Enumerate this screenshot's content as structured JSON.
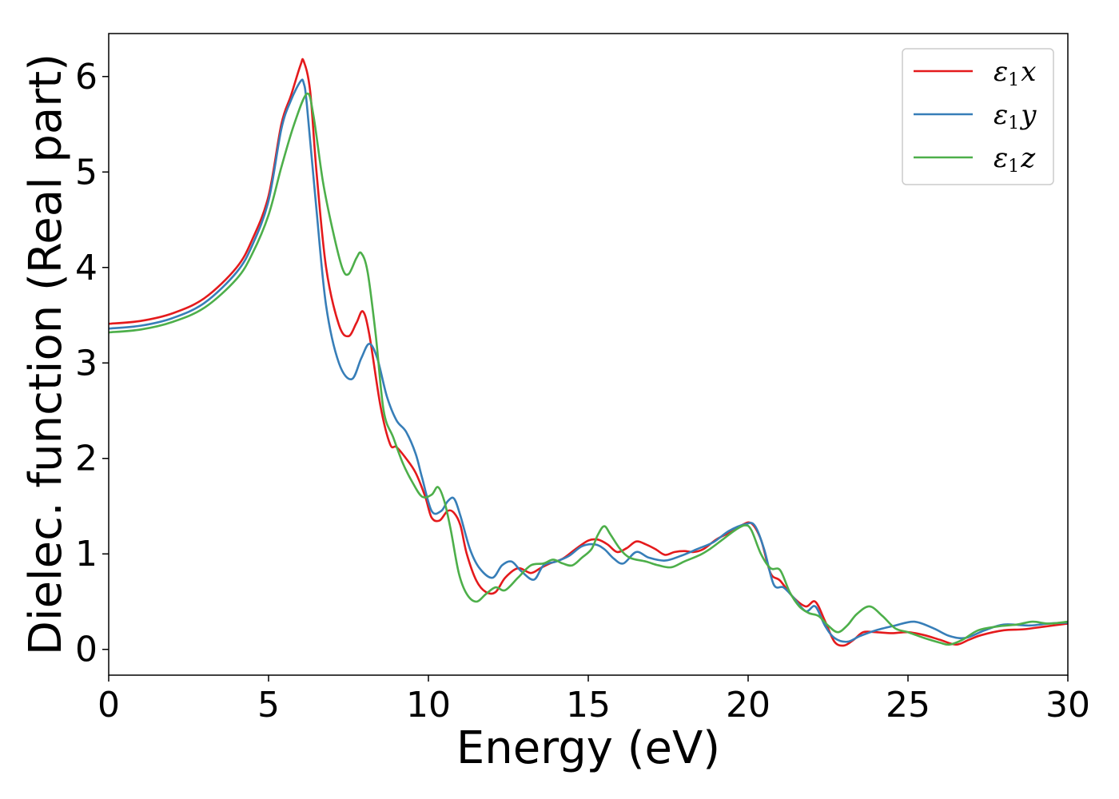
{
  "chart_data": {
    "type": "line",
    "xlabel": "Energy (eV)",
    "ylabel": "Dielec. function (Real part)",
    "xlim": [
      0,
      30
    ],
    "ylim": [
      -0.27,
      6.45
    ],
    "xticks": [
      0,
      5,
      10,
      15,
      20,
      25,
      30
    ],
    "yticks": [
      0,
      1,
      2,
      3,
      4,
      5,
      6
    ],
    "grid": false,
    "legend_position": "top-right",
    "series": [
      {
        "name": "ε1x",
        "legend": {
          "base": "ε",
          "sub": "1",
          "axis": "x"
        },
        "color": "#e41a1c",
        "points": [
          [
            0,
            3.41
          ],
          [
            1,
            3.44
          ],
          [
            2,
            3.52
          ],
          [
            3,
            3.68
          ],
          [
            4,
            4.0
          ],
          [
            4.5,
            4.3
          ],
          [
            5,
            4.75
          ],
          [
            5.4,
            5.5
          ],
          [
            5.7,
            5.8
          ],
          [
            6.0,
            6.12
          ],
          [
            6.1,
            6.16
          ],
          [
            6.3,
            5.85
          ],
          [
            6.5,
            5.0
          ],
          [
            6.8,
            4.0
          ],
          [
            7.2,
            3.4
          ],
          [
            7.5,
            3.28
          ],
          [
            7.75,
            3.42
          ],
          [
            7.95,
            3.54
          ],
          [
            8.15,
            3.3
          ],
          [
            8.5,
            2.55
          ],
          [
            8.8,
            2.15
          ],
          [
            9.0,
            2.12
          ],
          [
            9.3,
            2.0
          ],
          [
            9.6,
            1.85
          ],
          [
            9.9,
            1.6
          ],
          [
            10.1,
            1.38
          ],
          [
            10.35,
            1.35
          ],
          [
            10.6,
            1.45
          ],
          [
            10.8,
            1.43
          ],
          [
            11.0,
            1.3
          ],
          [
            11.2,
            1.0
          ],
          [
            11.5,
            0.72
          ],
          [
            11.8,
            0.6
          ],
          [
            12.1,
            0.6
          ],
          [
            12.4,
            0.75
          ],
          [
            12.8,
            0.85
          ],
          [
            13.2,
            0.8
          ],
          [
            13.5,
            0.85
          ],
          [
            13.8,
            0.9
          ],
          [
            14.2,
            0.95
          ],
          [
            14.6,
            1.05
          ],
          [
            15.0,
            1.14
          ],
          [
            15.3,
            1.15
          ],
          [
            15.6,
            1.1
          ],
          [
            15.9,
            1.02
          ],
          [
            16.2,
            1.06
          ],
          [
            16.5,
            1.13
          ],
          [
            16.8,
            1.1
          ],
          [
            17.1,
            1.05
          ],
          [
            17.4,
            0.99
          ],
          [
            17.7,
            1.02
          ],
          [
            18.0,
            1.03
          ],
          [
            18.3,
            1.02
          ],
          [
            18.6,
            1.05
          ],
          [
            19.0,
            1.15
          ],
          [
            19.4,
            1.22
          ],
          [
            19.8,
            1.3
          ],
          [
            20.1,
            1.32
          ],
          [
            20.4,
            1.15
          ],
          [
            20.7,
            0.8
          ],
          [
            21.0,
            0.72
          ],
          [
            21.4,
            0.55
          ],
          [
            21.8,
            0.45
          ],
          [
            22.1,
            0.5
          ],
          [
            22.4,
            0.3
          ],
          [
            22.7,
            0.08
          ],
          [
            23.0,
            0.04
          ],
          [
            23.3,
            0.1
          ],
          [
            23.6,
            0.18
          ],
          [
            24.0,
            0.18
          ],
          [
            24.5,
            0.17
          ],
          [
            25.0,
            0.18
          ],
          [
            25.5,
            0.15
          ],
          [
            26.0,
            0.1
          ],
          [
            26.5,
            0.05
          ],
          [
            26.9,
            0.1
          ],
          [
            27.3,
            0.15
          ],
          [
            28.0,
            0.2
          ],
          [
            28.6,
            0.21
          ],
          [
            29.3,
            0.24
          ],
          [
            30.0,
            0.27
          ]
        ]
      },
      {
        "name": "ε1y",
        "legend": {
          "base": "ε",
          "sub": "1",
          "axis": "y"
        },
        "color": "#377eb8",
        "points": [
          [
            0,
            3.36
          ],
          [
            1,
            3.39
          ],
          [
            2,
            3.47
          ],
          [
            3,
            3.63
          ],
          [
            4,
            3.95
          ],
          [
            4.5,
            4.24
          ],
          [
            5,
            4.7
          ],
          [
            5.4,
            5.45
          ],
          [
            5.7,
            5.75
          ],
          [
            6.0,
            5.95
          ],
          [
            6.1,
            5.93
          ],
          [
            6.2,
            5.7
          ],
          [
            6.5,
            4.6
          ],
          [
            6.8,
            3.6
          ],
          [
            7.2,
            3.0
          ],
          [
            7.6,
            2.83
          ],
          [
            7.9,
            3.05
          ],
          [
            8.15,
            3.2
          ],
          [
            8.4,
            3.05
          ],
          [
            8.7,
            2.65
          ],
          [
            9.0,
            2.4
          ],
          [
            9.3,
            2.28
          ],
          [
            9.6,
            2.05
          ],
          [
            9.8,
            1.8
          ],
          [
            10.1,
            1.45
          ],
          [
            10.4,
            1.45
          ],
          [
            10.6,
            1.55
          ],
          [
            10.8,
            1.58
          ],
          [
            11.0,
            1.4
          ],
          [
            11.3,
            1.05
          ],
          [
            11.6,
            0.85
          ],
          [
            12.0,
            0.75
          ],
          [
            12.3,
            0.88
          ],
          [
            12.6,
            0.92
          ],
          [
            12.9,
            0.82
          ],
          [
            13.3,
            0.73
          ],
          [
            13.6,
            0.88
          ],
          [
            14.0,
            0.92
          ],
          [
            14.4,
            0.98
          ],
          [
            14.8,
            1.08
          ],
          [
            15.2,
            1.1
          ],
          [
            15.5,
            1.05
          ],
          [
            15.8,
            0.95
          ],
          [
            16.1,
            0.9
          ],
          [
            16.5,
            1.02
          ],
          [
            16.9,
            0.96
          ],
          [
            17.4,
            0.93
          ],
          [
            17.9,
            0.98
          ],
          [
            18.4,
            1.05
          ],
          [
            18.9,
            1.12
          ],
          [
            19.4,
            1.24
          ],
          [
            19.9,
            1.31
          ],
          [
            20.2,
            1.3
          ],
          [
            20.5,
            1.05
          ],
          [
            20.8,
            0.68
          ],
          [
            21.1,
            0.65
          ],
          [
            21.4,
            0.55
          ],
          [
            21.8,
            0.4
          ],
          [
            22.1,
            0.45
          ],
          [
            22.4,
            0.25
          ],
          [
            22.7,
            0.12
          ],
          [
            23.1,
            0.08
          ],
          [
            23.5,
            0.14
          ],
          [
            24.0,
            0.2
          ],
          [
            24.6,
            0.25
          ],
          [
            25.2,
            0.29
          ],
          [
            25.8,
            0.22
          ],
          [
            26.3,
            0.14
          ],
          [
            26.8,
            0.12
          ],
          [
            27.4,
            0.2
          ],
          [
            28.0,
            0.26
          ],
          [
            28.8,
            0.25
          ],
          [
            29.4,
            0.27
          ],
          [
            30.0,
            0.28
          ]
        ]
      },
      {
        "name": "ε1z",
        "legend": {
          "base": "ε",
          "sub": "1",
          "axis": "z"
        },
        "color": "#4daf4a",
        "points": [
          [
            0,
            3.32
          ],
          [
            1,
            3.35
          ],
          [
            2,
            3.43
          ],
          [
            3,
            3.58
          ],
          [
            4,
            3.88
          ],
          [
            4.5,
            4.15
          ],
          [
            5,
            4.55
          ],
          [
            5.4,
            5.05
          ],
          [
            5.8,
            5.5
          ],
          [
            6.2,
            5.82
          ],
          [
            6.4,
            5.6
          ],
          [
            6.7,
            4.9
          ],
          [
            7.0,
            4.4
          ],
          [
            7.3,
            4.0
          ],
          [
            7.5,
            3.93
          ],
          [
            7.75,
            4.1
          ],
          [
            7.9,
            4.15
          ],
          [
            8.1,
            3.95
          ],
          [
            8.35,
            3.3
          ],
          [
            8.6,
            2.5
          ],
          [
            8.9,
            2.22
          ],
          [
            9.2,
            1.95
          ],
          [
            9.5,
            1.75
          ],
          [
            9.8,
            1.6
          ],
          [
            10.1,
            1.62
          ],
          [
            10.3,
            1.7
          ],
          [
            10.5,
            1.55
          ],
          [
            10.7,
            1.25
          ],
          [
            10.95,
            0.8
          ],
          [
            11.2,
            0.58
          ],
          [
            11.5,
            0.5
          ],
          [
            11.8,
            0.58
          ],
          [
            12.1,
            0.65
          ],
          [
            12.4,
            0.62
          ],
          [
            12.8,
            0.75
          ],
          [
            13.2,
            0.88
          ],
          [
            13.6,
            0.9
          ],
          [
            13.9,
            0.94
          ],
          [
            14.2,
            0.9
          ],
          [
            14.5,
            0.88
          ],
          [
            14.8,
            0.96
          ],
          [
            15.1,
            1.05
          ],
          [
            15.3,
            1.2
          ],
          [
            15.5,
            1.29
          ],
          [
            15.7,
            1.2
          ],
          [
            16.0,
            1.05
          ],
          [
            16.3,
            0.96
          ],
          [
            16.8,
            0.92
          ],
          [
            17.2,
            0.88
          ],
          [
            17.6,
            0.86
          ],
          [
            18.0,
            0.92
          ],
          [
            18.5,
            0.99
          ],
          [
            18.8,
            1.05
          ],
          [
            19.2,
            1.15
          ],
          [
            19.6,
            1.25
          ],
          [
            19.9,
            1.3
          ],
          [
            20.1,
            1.25
          ],
          [
            20.4,
            1.0
          ],
          [
            20.7,
            0.85
          ],
          [
            21.0,
            0.83
          ],
          [
            21.3,
            0.6
          ],
          [
            21.6,
            0.45
          ],
          [
            21.9,
            0.38
          ],
          [
            22.2,
            0.35
          ],
          [
            22.5,
            0.25
          ],
          [
            22.8,
            0.18
          ],
          [
            23.1,
            0.25
          ],
          [
            23.4,
            0.37
          ],
          [
            23.8,
            0.45
          ],
          [
            24.2,
            0.35
          ],
          [
            24.6,
            0.22
          ],
          [
            25.0,
            0.18
          ],
          [
            25.5,
            0.12
          ],
          [
            26.0,
            0.07
          ],
          [
            26.3,
            0.05
          ],
          [
            26.7,
            0.1
          ],
          [
            27.2,
            0.2
          ],
          [
            27.8,
            0.24
          ],
          [
            28.4,
            0.26
          ],
          [
            28.9,
            0.29
          ],
          [
            29.4,
            0.27
          ],
          [
            30.0,
            0.29
          ]
        ]
      }
    ]
  }
}
